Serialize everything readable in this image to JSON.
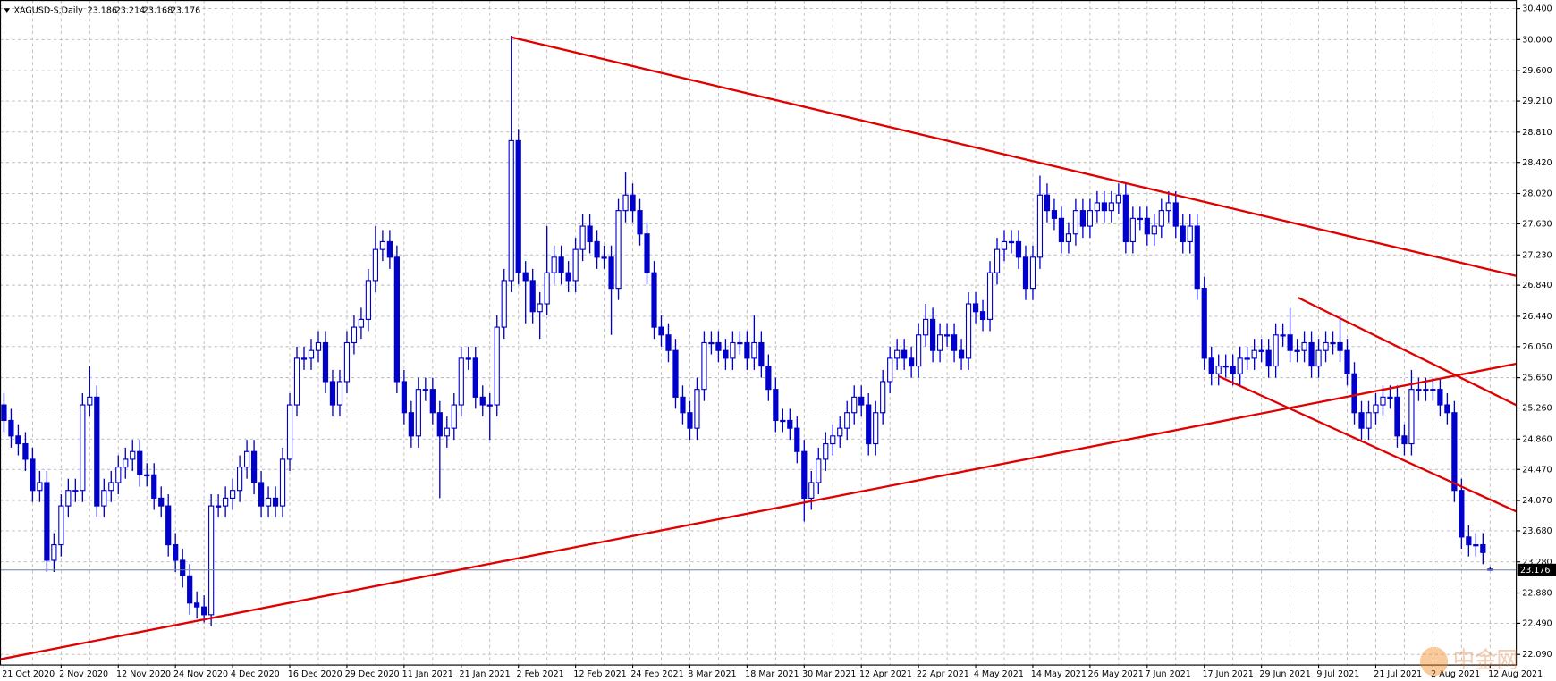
{
  "chart_data": {
    "type": "candlestick",
    "title": "XAGUSD-S,Daily",
    "watermark": "中金网",
    "color": "#0000cc",
    "grid": true,
    "categories": [
      "21 Oct 2020",
      null,
      null,
      null,
      null,
      null,
      null,
      null,
      "2 Nov 2020",
      null,
      null,
      null,
      null,
      null,
      null,
      null,
      "12 Nov 2020",
      null,
      null,
      null,
      null,
      null,
      null,
      null,
      "24 Nov 2020",
      null,
      null,
      null,
      null,
      null,
      null,
      null,
      "4 Dec 2020",
      null,
      null,
      null,
      null,
      null,
      null,
      null,
      "16 Dec 2020",
      null,
      null,
      null,
      null,
      null,
      null,
      null,
      "29 Dec 2020",
      null,
      null,
      null,
      null,
      null,
      null,
      null,
      "11 Jan 2021",
      null,
      null,
      null,
      null,
      null,
      null,
      null,
      "21 Jan 2021",
      null,
      null,
      null,
      null,
      null,
      null,
      null,
      "2 Feb 2021",
      null,
      null,
      null,
      null,
      null,
      null,
      null,
      "12 Feb 2021",
      null,
      null,
      null,
      null,
      null,
      null,
      null,
      "24 Feb 2021",
      null,
      null,
      null,
      null,
      null,
      null,
      null,
      "8 Mar 2021",
      null,
      null,
      null,
      null,
      null,
      null,
      null,
      "18 Mar 2021",
      null,
      null,
      null,
      null,
      null,
      null,
      null,
      "30 Mar 2021",
      null,
      null,
      null,
      null,
      null,
      null,
      null,
      "12 Apr 2021",
      null,
      null,
      null,
      null,
      null,
      null,
      null,
      "22 Apr 2021",
      null,
      null,
      null,
      null,
      null,
      null,
      null,
      "4 May 2021",
      null,
      null,
      null,
      null,
      null,
      null,
      null,
      "14 May 2021",
      null,
      null,
      null,
      null,
      null,
      null,
      null,
      "26 May 2021",
      null,
      null,
      null,
      null,
      null,
      null,
      null,
      "7 Jun 2021",
      null,
      null,
      null,
      null,
      null,
      null,
      null,
      "17 Jun 2021",
      null,
      null,
      null,
      null,
      null,
      null,
      null,
      "29 Jun 2021",
      null,
      null,
      null,
      null,
      null,
      null,
      null,
      "9 Jul 2021",
      null,
      null,
      null,
      null,
      null,
      null,
      null,
      "21 Jul 2021",
      null,
      null,
      null,
      null,
      null,
      null,
      null,
      "2 Aug 2021",
      null,
      null,
      null,
      null,
      null,
      null,
      null,
      "12 Aug 2021"
    ],
    "open": [
      25.3,
      25.1,
      24.9,
      24.8,
      24.6,
      24.2,
      24.3,
      23.3,
      23.5,
      24.0,
      24.2,
      24.2,
      25.3,
      25.4,
      24.0,
      24.2,
      24.3,
      24.5,
      24.6,
      24.7,
      24.4,
      24.4,
      24.1,
      24.0,
      23.5,
      23.3,
      23.1,
      22.75,
      22.7,
      22.6,
      24.0,
      24.0,
      24.1,
      24.2,
      24.5,
      24.7,
      24.3,
      24.0,
      24.1,
      24.0,
      24.6,
      25.3,
      25.9,
      25.9,
      26.0,
      26.1,
      25.6,
      25.3,
      25.6,
      26.1,
      26.3,
      26.4,
      26.9,
      27.3,
      27.4,
      27.2,
      25.6,
      25.2,
      24.9,
      25.5,
      25.5,
      25.2,
      24.9,
      25.0,
      25.3,
      25.9,
      25.9,
      25.4,
      25.3,
      25.3,
      26.3,
      26.9,
      28.7,
      27.0,
      26.9,
      26.5,
      26.6,
      27.0,
      27.2,
      27.0,
      26.9,
      27.3,
      27.6,
      27.4,
      27.2,
      27.2,
      26.8,
      27.8,
      28.0,
      27.8,
      27.5,
      27.0,
      26.3,
      26.2,
      26.0,
      25.4,
      25.2,
      25.0,
      25.5,
      26.1,
      26.1,
      26.0,
      25.9,
      26.1,
      26.1,
      25.9,
      26.1,
      25.8,
      25.5,
      25.1,
      25.1,
      25.0,
      24.7,
      24.1,
      24.3,
      24.6,
      24.8,
      24.9,
      25.0,
      25.2,
      25.4,
      25.3,
      24.8,
      25.2,
      25.6,
      25.9,
      26.0,
      25.9,
      25.8,
      26.2,
      26.4,
      26.0,
      26.2,
      26.2,
      26.0,
      25.9,
      26.6,
      26.5,
      26.4,
      27.0,
      27.3,
      27.4,
      27.4,
      27.2,
      26.8,
      27.2,
      28.0,
      27.8,
      27.7,
      27.4,
      27.5,
      27.8,
      27.6,
      27.8,
      27.9,
      27.8,
      27.9,
      28.0,
      27.4,
      27.7,
      27.7,
      27.5,
      27.6,
      27.8,
      27.9,
      27.6,
      27.4,
      27.6,
      26.8,
      25.9,
      25.7,
      25.8,
      25.8,
      25.7,
      25.9,
      25.9,
      26.0,
      26.0,
      25.8,
      26.2,
      26.2,
      26.0,
      26.0,
      26.1,
      25.8,
      26.0,
      26.1,
      26.1,
      26.0,
      25.7,
      25.2,
      25.0,
      25.2,
      25.3,
      25.4,
      25.4,
      24.9,
      24.8,
      25.5,
      25.5,
      25.5,
      25.5,
      25.3,
      25.2,
      24.2,
      23.6,
      23.5,
      23.5,
      23.186
    ],
    "high": [
      25.45,
      25.25,
      25.05,
      24.95,
      24.75,
      24.45,
      24.45,
      23.65,
      24.15,
      24.35,
      24.35,
      25.45,
      25.8,
      25.55,
      24.35,
      24.45,
      24.65,
      24.75,
      24.85,
      24.85,
      24.55,
      24.55,
      24.25,
      24.15,
      23.65,
      23.45,
      23.25,
      22.9,
      22.85,
      24.15,
      24.15,
      24.25,
      24.35,
      24.65,
      24.85,
      24.85,
      24.45,
      24.25,
      24.25,
      24.75,
      25.45,
      26.05,
      26.05,
      26.15,
      26.25,
      26.25,
      25.75,
      25.75,
      26.25,
      26.45,
      26.55,
      27.05,
      27.6,
      27.55,
      27.55,
      27.35,
      25.75,
      25.35,
      25.65,
      25.65,
      25.65,
      25.35,
      25.15,
      25.45,
      26.05,
      26.05,
      26.05,
      25.55,
      25.45,
      26.45,
      27.05,
      30.05,
      28.85,
      27.15,
      27.05,
      26.75,
      27.6,
      27.35,
      27.35,
      27.15,
      27.45,
      27.75,
      27.75,
      27.55,
      27.35,
      27.35,
      27.95,
      28.3,
      28.15,
      27.95,
      27.65,
      27.15,
      26.45,
      26.35,
      26.15,
      25.55,
      25.35,
      25.65,
      26.25,
      26.25,
      26.25,
      26.15,
      26.25,
      26.25,
      26.25,
      26.45,
      26.25,
      25.95,
      25.65,
      25.25,
      25.25,
      25.15,
      24.85,
      24.45,
      24.75,
      24.95,
      25.05,
      25.15,
      25.35,
      25.55,
      25.55,
      25.45,
      25.35,
      25.75,
      26.05,
      26.15,
      26.15,
      26.05,
      26.35,
      26.6,
      26.55,
      26.35,
      26.35,
      26.35,
      26.15,
      26.75,
      26.75,
      26.65,
      27.15,
      27.45,
      27.55,
      27.55,
      27.55,
      27.35,
      27.35,
      28.25,
      28.15,
      27.95,
      27.85,
      27.65,
      27.95,
      27.95,
      27.95,
      28.05,
      28.05,
      28.05,
      28.15,
      28.15,
      27.85,
      27.85,
      27.85,
      27.75,
      27.95,
      28.05,
      28.05,
      27.75,
      27.75,
      27.75,
      26.95,
      26.05,
      25.95,
      25.95,
      25.95,
      26.05,
      26.05,
      26.15,
      26.15,
      26.15,
      26.35,
      26.35,
      26.55,
      26.15,
      26.25,
      26.25,
      26.15,
      26.25,
      26.25,
      26.45,
      26.15,
      25.85,
      25.35,
      25.35,
      25.45,
      25.55,
      25.55,
      25.55,
      25.05,
      25.75,
      25.65,
      25.65,
      25.65,
      25.65,
      25.45,
      25.35,
      24.35,
      23.75,
      23.65,
      23.65,
      23.214
    ],
    "low": [
      24.95,
      24.75,
      24.65,
      24.45,
      24.05,
      24.05,
      23.15,
      23.15,
      23.35,
      23.85,
      24.05,
      24.05,
      25.15,
      23.85,
      23.85,
      24.05,
      24.15,
      24.35,
      24.45,
      24.25,
      24.25,
      23.95,
      23.85,
      23.35,
      23.15,
      22.95,
      22.6,
      22.55,
      22.5,
      22.45,
      23.85,
      23.85,
      23.95,
      24.05,
      24.35,
      24.15,
      23.85,
      23.85,
      23.85,
      23.85,
      24.45,
      25.15,
      25.75,
      25.75,
      25.85,
      25.45,
      25.15,
      25.15,
      25.45,
      25.95,
      26.15,
      26.25,
      26.75,
      27.15,
      27.05,
      25.45,
      25.05,
      24.75,
      24.75,
      25.35,
      25.05,
      24.1,
      24.75,
      24.85,
      25.15,
      25.75,
      25.25,
      25.15,
      24.85,
      25.15,
      26.15,
      26.75,
      26.85,
      26.35,
      26.35,
      26.15,
      26.45,
      26.85,
      26.85,
      26.75,
      26.75,
      27.15,
      27.25,
      27.05,
      27.05,
      26.2,
      26.65,
      27.65,
      27.65,
      27.35,
      26.85,
      26.15,
      26.05,
      25.85,
      25.25,
      25.05,
      24.85,
      24.85,
      25.35,
      25.95,
      25.85,
      25.75,
      25.75,
      25.95,
      25.75,
      25.75,
      25.65,
      25.35,
      24.95,
      24.95,
      24.85,
      24.55,
      23.8,
      23.95,
      24.15,
      24.45,
      24.65,
      24.75,
      24.85,
      25.05,
      25.15,
      24.65,
      24.65,
      25.05,
      25.45,
      25.75,
      25.75,
      25.65,
      25.65,
      26.05,
      25.85,
      25.85,
      26.05,
      25.85,
      25.75,
      25.75,
      26.35,
      26.25,
      26.25,
      26.85,
      27.15,
      27.25,
      27.05,
      26.65,
      26.65,
      27.05,
      27.65,
      27.55,
      27.25,
      27.25,
      27.35,
      27.45,
      27.45,
      27.65,
      27.65,
      27.65,
      27.75,
      27.25,
      27.25,
      27.55,
      27.35,
      27.35,
      27.45,
      27.65,
      27.45,
      27.25,
      27.25,
      26.65,
      25.75,
      25.55,
      25.55,
      25.65,
      25.55,
      25.55,
      25.75,
      25.75,
      25.85,
      25.65,
      25.65,
      26.05,
      25.85,
      25.85,
      25.85,
      25.65,
      25.65,
      25.85,
      25.95,
      25.85,
      25.55,
      25.05,
      24.85,
      24.85,
      25.05,
      25.15,
      25.25,
      24.75,
      24.65,
      24.65,
      25.35,
      25.35,
      25.35,
      25.15,
      25.05,
      24.05,
      23.45,
      23.35,
      23.35,
      23.25,
      23.168
    ],
    "close": [
      25.1,
      24.9,
      24.8,
      24.6,
      24.2,
      24.3,
      23.3,
      23.5,
      24.0,
      24.2,
      24.2,
      25.3,
      25.4,
      24.0,
      24.2,
      24.3,
      24.5,
      24.6,
      24.7,
      24.4,
      24.4,
      24.1,
      24.0,
      23.5,
      23.3,
      23.1,
      22.75,
      22.7,
      22.6,
      24.0,
      24.0,
      24.1,
      24.2,
      24.5,
      24.7,
      24.3,
      24.0,
      24.1,
      24.0,
      24.6,
      25.3,
      25.9,
      25.9,
      26.0,
      26.1,
      25.6,
      25.3,
      25.6,
      26.1,
      26.3,
      26.4,
      26.9,
      27.3,
      27.4,
      27.2,
      25.6,
      25.2,
      24.9,
      25.5,
      25.5,
      25.2,
      24.9,
      25.0,
      25.3,
      25.9,
      25.9,
      25.4,
      25.3,
      25.3,
      26.3,
      26.9,
      28.7,
      27.0,
      26.9,
      26.5,
      26.6,
      27.0,
      27.2,
      27.0,
      26.9,
      27.3,
      27.6,
      27.4,
      27.2,
      27.2,
      26.8,
      27.8,
      28.0,
      27.8,
      27.5,
      27.0,
      26.3,
      26.2,
      26.0,
      25.4,
      25.2,
      25.0,
      25.5,
      26.1,
      26.1,
      26.0,
      25.9,
      26.1,
      26.1,
      25.9,
      26.1,
      25.8,
      25.5,
      25.1,
      25.1,
      25.0,
      24.7,
      24.1,
      24.3,
      24.6,
      24.8,
      24.9,
      25.0,
      25.2,
      25.4,
      25.3,
      24.8,
      25.2,
      25.6,
      25.9,
      26.0,
      25.9,
      25.8,
      26.2,
      26.4,
      26.0,
      26.2,
      26.2,
      26.0,
      25.9,
      26.6,
      26.5,
      26.4,
      27.0,
      27.3,
      27.4,
      27.4,
      27.2,
      26.8,
      27.2,
      28.0,
      27.8,
      27.7,
      27.4,
      27.5,
      27.8,
      27.6,
      27.8,
      27.9,
      27.8,
      27.9,
      28.0,
      27.4,
      27.7,
      27.7,
      27.5,
      27.6,
      27.8,
      27.9,
      27.6,
      27.4,
      27.6,
      26.8,
      25.9,
      25.7,
      25.8,
      25.8,
      25.7,
      25.9,
      25.9,
      26.0,
      26.0,
      25.8,
      26.2,
      26.2,
      26.0,
      26.0,
      26.1,
      25.8,
      26.0,
      26.1,
      26.1,
      26.0,
      25.7,
      25.2,
      25.0,
      25.2,
      25.3,
      25.4,
      25.4,
      24.9,
      24.8,
      25.5,
      25.5,
      25.5,
      25.5,
      25.3,
      25.2,
      24.2,
      23.6,
      23.5,
      23.5,
      23.4,
      23.176
    ],
    "ylim": [
      21.96,
      30.51
    ],
    "yticks": [
      {
        "value": 30.4,
        "label": "30.400"
      },
      {
        "value": 30.0,
        "label": "30.000"
      },
      {
        "value": 29.6,
        "label": "29.600"
      },
      {
        "value": 29.21,
        "label": "29.210"
      },
      {
        "value": 28.81,
        "label": "28.810"
      },
      {
        "value": 28.42,
        "label": "28.420"
      },
      {
        "value": 28.02,
        "label": "28.020"
      },
      {
        "value": 27.63,
        "label": "27.630"
      },
      {
        "value": 27.23,
        "label": "27.230"
      },
      {
        "value": 26.84,
        "label": "26.840"
      },
      {
        "value": 26.44,
        "label": "26.440"
      },
      {
        "value": 26.05,
        "label": "26.050"
      },
      {
        "value": 25.65,
        "label": "25.650"
      },
      {
        "value": 25.26,
        "label": "25.260"
      },
      {
        "value": 24.86,
        "label": "24.860"
      },
      {
        "value": 24.47,
        "label": "24.470"
      },
      {
        "value": 24.07,
        "label": "24.070"
      },
      {
        "value": 23.68,
        "label": "23.680"
      },
      {
        "value": 23.28,
        "label": "23.280"
      },
      {
        "value": 22.88,
        "label": "22.880"
      },
      {
        "value": 22.49,
        "label": "22.490"
      },
      {
        "value": 22.09,
        "label": "22.090"
      }
    ]
  }
}
